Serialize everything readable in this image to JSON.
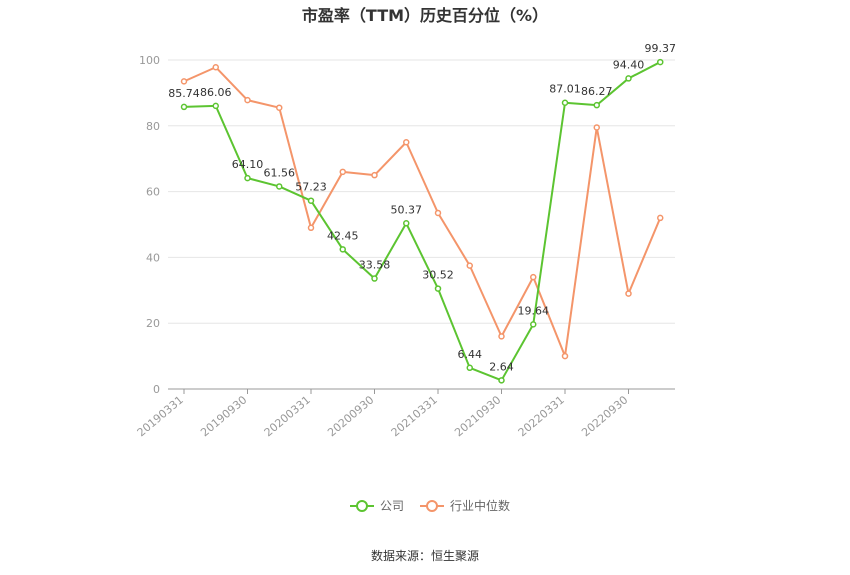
{
  "chart_data": {
    "type": "line",
    "title": "市盈率（TTM）历史百分位（%）",
    "x": [
      "20190331",
      "20190630",
      "20190930",
      "20191231",
      "20200331",
      "20200630",
      "20200930",
      "20201231",
      "20210331",
      "20210630",
      "20210930",
      "20211231",
      "20220331",
      "20220630",
      "20220930",
      "20221231"
    ],
    "x_tick_labels": [
      "20190331",
      "20190930",
      "20200331",
      "20200930",
      "20210331",
      "20210930",
      "20220331",
      "20220930"
    ],
    "ylim": [
      0,
      100
    ],
    "yticks": [
      0,
      20,
      40,
      60,
      80,
      100
    ],
    "grid": true,
    "legend_placement": "bottom",
    "series": [
      {
        "name": "公司",
        "color": "#5cc431",
        "values": [
          85.74,
          86.06,
          64.1,
          61.56,
          57.23,
          42.45,
          33.58,
          50.37,
          30.52,
          6.44,
          2.64,
          19.64,
          87.01,
          86.27,
          94.4,
          99.37
        ],
        "labels": [
          "85.74",
          "86.06",
          "64.10",
          "61.56",
          "57.23",
          "42.45",
          "33.58",
          "50.37",
          "30.52",
          "6.44",
          "2.64",
          "19.64",
          "87.01",
          "86.27",
          "94.40",
          "99.37"
        ]
      },
      {
        "name": "行业中位数",
        "color": "#f4956a",
        "values": [
          93.5,
          97.8,
          87.8,
          85.5,
          49.0,
          66.0,
          65.0,
          75.0,
          53.5,
          37.5,
          16.0,
          34.0,
          10.0,
          79.5,
          29.0,
          52.0
        ]
      }
    ]
  },
  "source_text": "数据来源：恒生聚源"
}
